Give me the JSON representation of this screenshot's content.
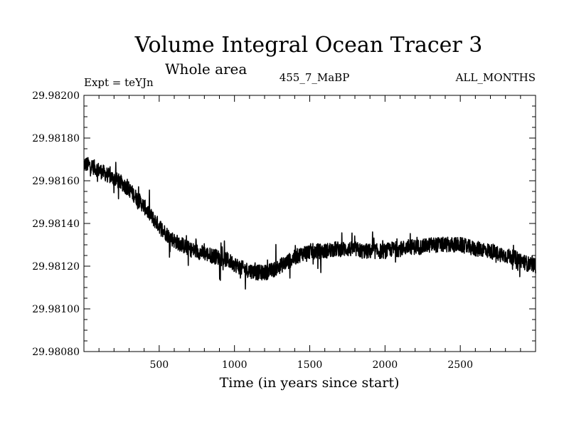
{
  "chart_data": {
    "type": "line",
    "title": "Volume Integral Ocean Tracer 3",
    "subtitle": "Whole area",
    "experiment_label": "Expt = teYJn",
    "period_label": "455_7_MaBP",
    "season_label": "ALL_MONTHS",
    "xlabel": "Time (in years since start)",
    "ylabel": "",
    "xlim": [
      0,
      3000
    ],
    "ylim": [
      29.9808,
      29.982
    ],
    "xticks": [
      500,
      1000,
      1500,
      2000,
      2500
    ],
    "xtick_labels": [
      "500",
      "1000",
      "1500",
      "2000",
      "2500"
    ],
    "yticks": [
      29.9808,
      29.981,
      29.9812,
      29.9814,
      29.9816,
      29.9818,
      29.982
    ],
    "ytick_labels": [
      "29.98080",
      "29.98100",
      "29.98120",
      "29.98140",
      "29.98160",
      "29.98180",
      "29.98200"
    ],
    "grid": false,
    "series": [
      {
        "name": "Volume Integral Ocean Tracer 3",
        "x": [
          0,
          50,
          100,
          150,
          200,
          250,
          300,
          350,
          400,
          450,
          500,
          550,
          600,
          650,
          700,
          750,
          800,
          850,
          900,
          950,
          1000,
          1050,
          1100,
          1150,
          1200,
          1250,
          1300,
          1350,
          1400,
          1450,
          1500,
          1550,
          1600,
          1650,
          1700,
          1750,
          1800,
          1850,
          1900,
          1950,
          2000,
          2050,
          2100,
          2150,
          2200,
          2250,
          2300,
          2350,
          2400,
          2450,
          2500,
          2550,
          2600,
          2650,
          2700,
          2750,
          2800,
          2850,
          2900,
          2950,
          3000
        ],
        "values": [
          29.98168,
          29.98167,
          29.98165,
          29.98163,
          29.98161,
          29.98159,
          29.98156,
          29.98152,
          29.98148,
          29.98143,
          29.98139,
          29.98135,
          29.98132,
          29.9813,
          29.98128,
          29.98127,
          29.98126,
          29.98125,
          29.98124,
          29.98123,
          29.98121,
          29.98119,
          29.98118,
          29.98117,
          29.98117,
          29.98118,
          29.9812,
          29.98122,
          29.98124,
          29.98126,
          29.98127,
          29.98127,
          29.98127,
          29.98128,
          29.98128,
          29.98128,
          29.98128,
          29.98127,
          29.98127,
          29.98127,
          29.98127,
          29.98128,
          29.98128,
          29.98129,
          29.98129,
          29.98129,
          29.9813,
          29.9813,
          29.9813,
          29.9813,
          29.9813,
          29.98129,
          29.98128,
          29.98128,
          29.98127,
          29.98126,
          29.98125,
          29.98124,
          29.98123,
          29.98121,
          29.9812
        ],
        "noise_amplitude": 8e-05
      }
    ]
  }
}
